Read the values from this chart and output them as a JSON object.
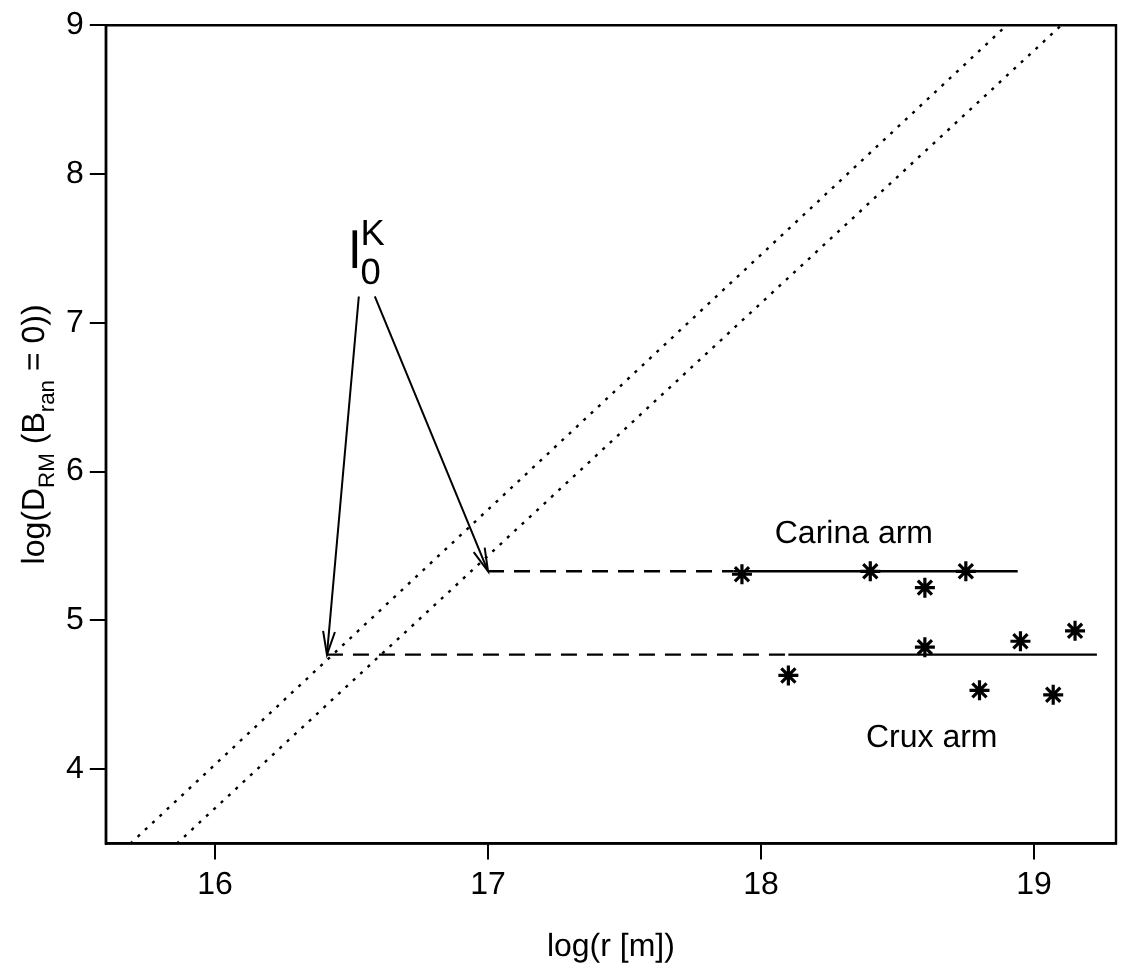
{
  "chart_data": {
    "type": "line",
    "xlabel": "log(r [m])",
    "ylabel": "log(D$_{RM}$ (B$_{ran}$ = 0))",
    "xlim": [
      15.6,
      19.3
    ],
    "xticks": [
      16,
      17,
      18,
      19
    ],
    "ylim": [
      3.5,
      9
    ],
    "yticks": [
      4,
      5,
      6,
      7,
      8,
      9
    ],
    "grid": false,
    "legend": false,
    "annotations": [
      {
        "text": "l$_{0}$$^{K}$",
        "x": 17.0,
        "y": 5.33
      }
    ],
    "series": [
      {
        "type": "line",
        "line_style": "dotted",
        "color": "#000000",
        "x": [
          15.69,
          18.9
        ],
        "values": [
          3.5,
          9
        ]
      },
      {
        "type": "line",
        "line_style": "dotted",
        "color": "#000000",
        "x": [
          15.86,
          19.1
        ],
        "values": [
          3.5,
          9
        ]
      },
      {
        "type": "line",
        "line_style": "dashed",
        "color": "#000000",
        "x": [
          17.0,
          17.9
        ],
        "values": [
          5.33,
          5.33
        ]
      },
      {
        "type": "line",
        "line_style": "solid",
        "color": "#000000",
        "x": [
          17.9,
          18.94
        ],
        "values": [
          5.33,
          5.33
        ]
      },
      {
        "type": "line",
        "line_style": "dashed",
        "color": "#000000",
        "x": [
          16.41,
          18.1
        ],
        "values": [
          4.77,
          4.77
        ]
      },
      {
        "type": "line",
        "line_style": "solid",
        "color": "#000000",
        "x": [
          18.1,
          19.23
        ],
        "values": [
          4.77,
          4.77
        ]
      },
      {
        "type": "scatter",
        "name": "Carina arm",
        "marker": "cross",
        "color": "#000000",
        "x": [
          17.93,
          18.4,
          18.6,
          18.75
        ],
        "values": [
          5.31,
          5.33,
          5.22,
          5.33
        ]
      },
      {
        "type": "scatter",
        "name": "Crux arm",
        "marker": "cross",
        "color": "#000000",
        "x": [
          18.1,
          18.6,
          18.8,
          18.95,
          19.07,
          19.15
        ],
        "values": [
          4.63,
          4.82,
          4.53,
          4.86,
          4.5,
          4.93
        ]
      }
    ]
  }
}
